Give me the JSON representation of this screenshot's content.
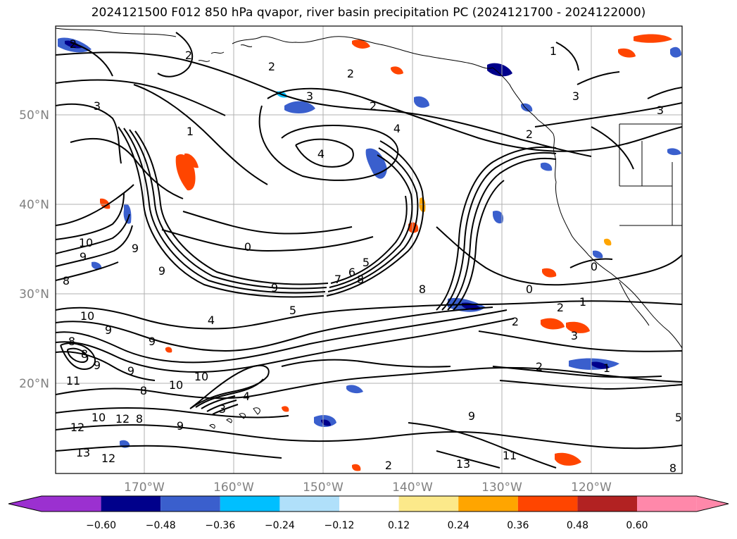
{
  "title": "2024121500 F012 850 hPa qvapor, river basin precipitation PC (2024121700 - 2024122000)",
  "axes": {
    "lon_labels": [
      "170°W",
      "160°W",
      "150°W",
      "140°W",
      "130°W",
      "120°W"
    ],
    "lat_labels": [
      "50°N",
      "40°N",
      "30°N",
      "20°N"
    ],
    "tick_color": "#808080",
    "grid_color": "#b0b0b0"
  },
  "colorbar": {
    "tick_labels": [
      "−0.60",
      "−0.48",
      "−0.36",
      "−0.24",
      "−0.12",
      "0.12",
      "0.24",
      "0.36",
      "0.48",
      "0.60"
    ],
    "colors": [
      "#9b30d0",
      "#00008b",
      "#3a5fcd",
      "#00bfff",
      "#b0e0fa",
      "#ffffff",
      "#fce98a",
      "#ffa500",
      "#ff4500",
      "#b22222",
      "#ff88aa"
    ]
  },
  "contour_labels": [
    "2",
    "2",
    "2",
    "3",
    "3",
    "3",
    "2",
    "4",
    "4",
    "1",
    "2",
    "3",
    "1",
    "0",
    "0",
    "2",
    "1",
    "0",
    "2",
    "1",
    "3",
    "2",
    "9",
    "8",
    "8",
    "10",
    "9",
    "9",
    "8",
    "10",
    "9",
    "9",
    "8",
    "9",
    "11",
    "9",
    "8",
    "10",
    "10",
    "12",
    "12",
    "13",
    "12",
    "13",
    "11",
    "10",
    "9",
    "8",
    "4",
    "5",
    "6",
    "7",
    "8",
    "9",
    "5",
    "4",
    "3",
    "9",
    "2",
    "8",
    "2",
    "5"
  ]
}
